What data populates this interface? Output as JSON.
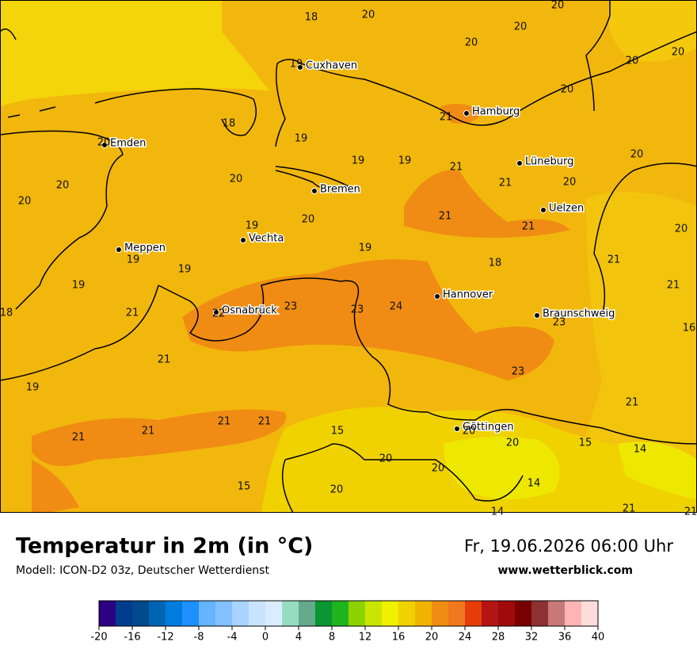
{
  "map": {
    "cities": [
      "Cuxhaven",
      "Hamburg",
      "Emden",
      "Lüneburg",
      "Bremen",
      "Uelzen",
      "Meppen",
      "Vechta",
      "Osnabrück",
      "Hannover",
      "Braunschweig",
      "Göttingen"
    ],
    "temperature_labels": [
      18,
      20,
      20,
      20,
      20,
      20,
      20,
      19,
      20,
      18,
      21,
      19,
      20,
      19,
      19,
      21,
      20,
      20,
      20,
      21,
      20,
      20,
      20,
      21,
      19,
      21,
      20,
      19,
      19,
      21,
      18,
      19,
      21,
      19,
      23,
      23,
      24,
      18,
      21,
      22,
      23,
      16,
      21,
      23,
      19,
      21,
      21,
      21,
      21,
      21,
      15,
      20,
      20,
      15,
      14,
      20,
      20,
      14,
      15,
      20,
      14,
      21,
      21
    ]
  },
  "footer": {
    "title": "Temperatur in 2m (in °C)",
    "model": "Modell: ICON-D2 03z, Deutscher Wetterdienst",
    "datetime": "Fr, 19.06.2026 06:00 Uhr",
    "website": "www.wetterblick.com"
  },
  "legend": {
    "ticks": [
      -20,
      -16,
      -12,
      -8,
      -4,
      0,
      4,
      8,
      12,
      16,
      20,
      24,
      28,
      32,
      36,
      40
    ],
    "colors": [
      "#2d0082",
      "#003c8c",
      "#004a8c",
      "#0064b4",
      "#007ddc",
      "#1e90ff",
      "#64b4ff",
      "#82c0ff",
      "#a8d4ff",
      "#c8e4ff",
      "#dcecff",
      "#96dcc3",
      "#64aa8c",
      "#0a9632",
      "#1eb41e",
      "#8cd200",
      "#c8e600",
      "#f0f000",
      "#f0d200",
      "#f0b400",
      "#f08c14",
      "#f0781e",
      "#e63c0a",
      "#b41414",
      "#a00a0a",
      "#780000",
      "#8c3232",
      "#c87878",
      "#ffb4b4",
      "#ffdcdc"
    ]
  }
}
